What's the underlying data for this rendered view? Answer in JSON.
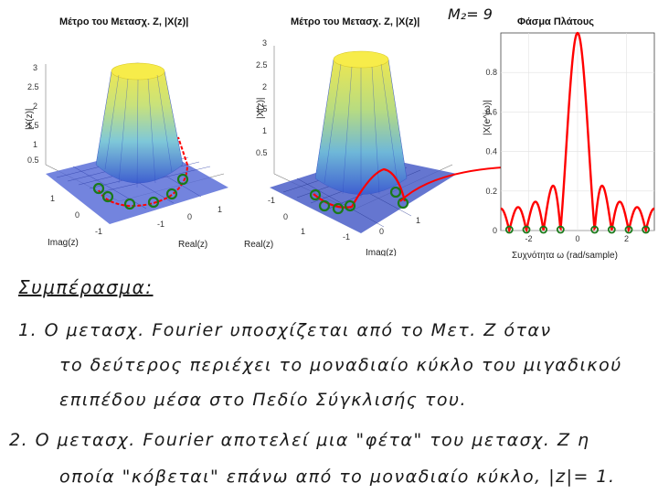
{
  "plots": {
    "left": {
      "title": "Μέτρο του Μετασχ. Ζ, |X(z)|",
      "zlabel": "|X(z)|",
      "xlabel": "Real(z)",
      "ylabel": "Imag(z)",
      "zticks": [
        "3",
        "2.5",
        "2",
        "1.5",
        "1",
        "0.5"
      ],
      "yticks": [
        "1",
        "0",
        "-1"
      ],
      "xticks": [
        "-1",
        "0",
        "1"
      ]
    },
    "middle": {
      "title": "Μέτρο του Μετασχ. Ζ, |X(z)|",
      "zlabel": "|X(z)|",
      "xlabel": "Imag(z)",
      "ylabel": "Real(z)",
      "zticks": [
        "3",
        "2.5",
        "2",
        "1.5",
        "1",
        "0.5"
      ],
      "yticks": [
        "-1",
        "0",
        "1"
      ],
      "xticks": [
        "-1",
        "0",
        "1"
      ]
    },
    "right": {
      "title": "Φάσμα Πλάτους",
      "ylabel": "|X(e^jω)|",
      "xlabel": "Συχνότητα ω (rad/sample)",
      "yticks": [
        "0.8",
        "0.6",
        "0.4",
        "0.2",
        "0"
      ],
      "xticks": [
        "-2",
        "0",
        "2"
      ]
    }
  },
  "chart_data": {
    "type": "line",
    "title": "Φάσμα Πλάτους",
    "xlabel": "Συχνότητα ω (rad/sample)",
    "ylabel": "|X(e^jω)|",
    "xlim": [
      -3.1416,
      3.1416
    ],
    "ylim": [
      0,
      1
    ],
    "series_color": "#ff0000",
    "marker_color": "#1a7a1a",
    "M": 9,
    "zeros": [
      -2.7925,
      -2.0944,
      -1.3963,
      -0.6981,
      0.6981,
      1.3963,
      2.0944,
      2.7925
    ],
    "peak": {
      "x": 0,
      "y": 1
    }
  },
  "annotation": {
    "m_label": "M₂= 9"
  },
  "notes": {
    "heading": "Συμπέρασμα:",
    "line1": "1.  Ο μετασχ. Fourier υποσχίζεται από το Μετ. Ζ  όταν",
    "line2": "το δεύτερος περιέχει το μοναδιαίο κύκλο του μιγαδικού",
    "line3": "επιπέδου μέσα στο Πεδίο Σύγκλισής του.",
    "line4": "2.  Ο μετασχ. Fourier αποτελεί μια \"φέτα\" του μετασχ. Ζ  η",
    "line5": "οποία \"κόβεται\" επάνω από το μοναδιαίο κύκλο, |z|= 1."
  }
}
